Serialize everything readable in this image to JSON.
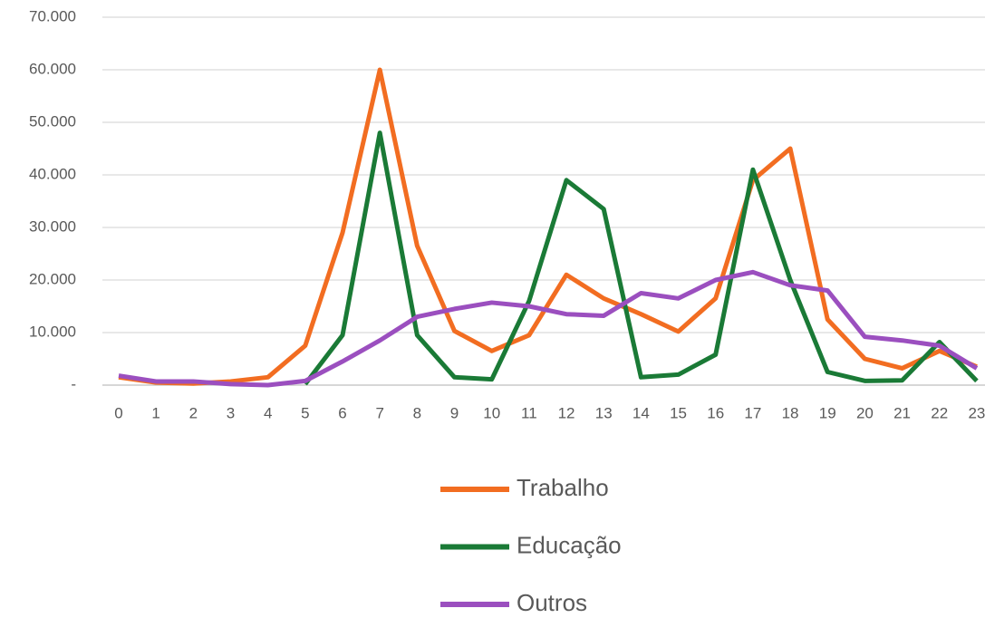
{
  "chart_data": {
    "type": "line",
    "categories": [
      "0",
      "1",
      "2",
      "3",
      "4",
      "5",
      "6",
      "7",
      "8",
      "9",
      "10",
      "11",
      "12",
      "13",
      "14",
      "15",
      "16",
      "17",
      "18",
      "19",
      "20",
      "21",
      "22",
      "23"
    ],
    "series": [
      {
        "name": "Trabalho",
        "color": "#f26d21",
        "values": [
          1500,
          500,
          300,
          700,
          1500,
          7500,
          29000,
          60000,
          26500,
          10300,
          6500,
          9500,
          21000,
          16500,
          13500,
          10200,
          16500,
          39000,
          45000,
          12500,
          5000,
          3200,
          6500,
          3500
        ]
      },
      {
        "name": "Educação",
        "color": "#1a7a36",
        "values": [
          null,
          null,
          null,
          null,
          null,
          200,
          9500,
          48000,
          9500,
          1500,
          1100,
          16000,
          39000,
          33500,
          1500,
          2000,
          5800,
          41000,
          20000,
          2500,
          800,
          900,
          8200,
          800
        ]
      },
      {
        "name": "Outros",
        "color": "#9b4fbf",
        "values": [
          1800,
          700,
          700,
          200,
          0,
          800,
          4500,
          8500,
          13000,
          14500,
          15700,
          15000,
          13500,
          13200,
          17500,
          16500,
          20000,
          21500,
          19000,
          18000,
          9200,
          8500,
          7500,
          3200
        ]
      }
    ],
    "ylim": [
      0,
      70000
    ],
    "yticks": [
      {
        "value": 0,
        "label": "-"
      },
      {
        "value": 10000,
        "label": "10.000"
      },
      {
        "value": 20000,
        "label": "20.000"
      },
      {
        "value": 30000,
        "label": "30.000"
      },
      {
        "value": 40000,
        "label": "40.000"
      },
      {
        "value": 50000,
        "label": "50.000"
      },
      {
        "value": 60000,
        "label": "60.000"
      },
      {
        "value": 70000,
        "label": "70.000"
      }
    ],
    "grid": true,
    "legend": "bottom"
  }
}
